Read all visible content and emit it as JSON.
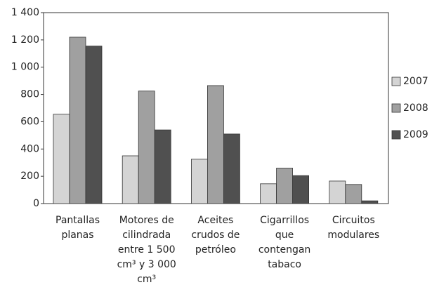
{
  "chart_data": {
    "type": "bar",
    "categories": [
      "Pantallas planas",
      "Motores de cilindrada entre 1 500 cm³ y 3 000 cm³",
      "Aceites crudos de petróleo",
      "Cigarrillos que contengan tabaco",
      "Circuitos modulares"
    ],
    "series": [
      {
        "name": "2007",
        "color": "#d4d4d4",
        "values": [
          655,
          350,
          325,
          145,
          165
        ]
      },
      {
        "name": "2008",
        "color": "#a0a0a0",
        "values": [
          1220,
          825,
          865,
          260,
          140
        ]
      },
      {
        "name": "2009",
        "color": "#505050",
        "values": [
          1155,
          540,
          510,
          205,
          20
        ]
      }
    ],
    "ylim": [
      0,
      1400
    ],
    "yticks": [
      0,
      200,
      400,
      600,
      800,
      {
        "value": 1000,
        "label": "1 000"
      },
      {
        "value": 1200,
        "label": "1 200"
      },
      {
        "value": 1400,
        "label": "1 400"
      }
    ],
    "legend": "right"
  }
}
